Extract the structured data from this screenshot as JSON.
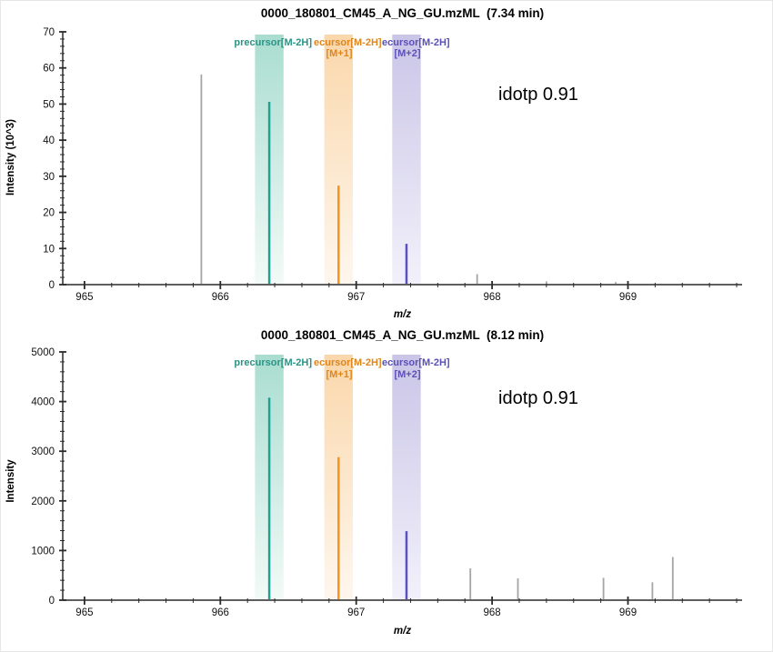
{
  "colors": {
    "axis": "#2a2a2a",
    "gray_peak": "#a5a5a5",
    "teal_peak": "#1fa294",
    "orange_peak": "#f7941e",
    "purple_peak": "#5a50c2",
    "teal_text": "#2a9486",
    "orange_text": "#de861c",
    "purple_text": "#5a50b8",
    "teal_band_top": "#a9ddd0",
    "teal_band_bottom": "#f2faf7",
    "orange_band_top": "#fad7ab",
    "orange_band_bottom": "#fef7ee",
    "purple_band_top": "#cac5e7",
    "purple_band_bottom": "#f2f1fa"
  },
  "chart_data": [
    {
      "type": "line",
      "subtype": "mass-spectrum-sticks",
      "title": "0000_180801_CM45_A_NG_GU.mzML  (7.34 min)",
      "xlabel": "m/z",
      "ylabel": "Intensity (10^3)",
      "annotation": "idotp 0.91",
      "xlim": [
        964.84,
        969.84
      ],
      "ylim": [
        0,
        70
      ],
      "x_major_ticks": [
        965,
        966,
        967,
        968,
        969
      ],
      "x_minor_step": 0.2,
      "y_major_ticks": [
        0,
        10,
        20,
        30,
        40,
        50,
        60,
        70
      ],
      "y_minor_step": 2,
      "grid": false,
      "band_half_width_mz": 0.105,
      "bands": [
        {
          "color": "teal",
          "center_mz": 966.36
        },
        {
          "color": "orange",
          "center_mz": 966.87
        },
        {
          "color": "purple",
          "center_mz": 967.37
        }
      ],
      "legend": {
        "row1": [
          {
            "text": "precursor[M-2H]",
            "color": "teal"
          },
          {
            "text": "ecursor[M-2H]",
            "color": "orange"
          },
          {
            "text": "ecursor[M-2H]",
            "color": "purple"
          }
        ],
        "row2": [
          {
            "text": "[M+1]",
            "color": "orange"
          },
          {
            "text": "[M+2]",
            "color": "purple"
          }
        ]
      },
      "peaks": [
        {
          "mz": 965.86,
          "intensity": 58.2,
          "color": "gray"
        },
        {
          "mz": 966.36,
          "intensity": 50.6,
          "color": "teal"
        },
        {
          "mz": 966.87,
          "intensity": 27.4,
          "color": "orange"
        },
        {
          "mz": 967.37,
          "intensity": 11.3,
          "color": "purple"
        },
        {
          "mz": 967.89,
          "intensity": 2.9,
          "color": "gray"
        },
        {
          "mz": 968.4,
          "intensity": 0.9,
          "color": "gray"
        },
        {
          "mz": 968.91,
          "intensity": 0.7,
          "color": "gray"
        }
      ]
    },
    {
      "type": "line",
      "subtype": "mass-spectrum-sticks",
      "title": "0000_180801_CM45_A_NG_GU.mzML  (8.12 min)",
      "xlabel": "m/z",
      "ylabel": "Intensity",
      "annotation": "idotp 0.91",
      "xlim": [
        964.84,
        969.84
      ],
      "ylim": [
        0,
        5000
      ],
      "x_major_ticks": [
        965,
        966,
        967,
        968,
        969
      ],
      "x_minor_step": 0.2,
      "y_major_ticks": [
        0,
        1000,
        2000,
        3000,
        4000,
        5000
      ],
      "y_minor_step": 200,
      "grid": false,
      "band_half_width_mz": 0.105,
      "bands": [
        {
          "color": "teal",
          "center_mz": 966.36
        },
        {
          "color": "orange",
          "center_mz": 966.87
        },
        {
          "color": "purple",
          "center_mz": 967.37
        }
      ],
      "legend": {
        "row1": [
          {
            "text": "precursor[M-2H]",
            "color": "teal"
          },
          {
            "text": "ecursor[M-2H]",
            "color": "orange"
          },
          {
            "text": "ecursor[M-2H]",
            "color": "purple"
          }
        ],
        "row2": [
          {
            "text": "[M+1]",
            "color": "orange"
          },
          {
            "text": "[M+2]",
            "color": "purple"
          }
        ]
      },
      "peaks": [
        {
          "mz": 966.36,
          "intensity": 4080,
          "color": "teal"
        },
        {
          "mz": 966.87,
          "intensity": 2880,
          "color": "orange"
        },
        {
          "mz": 967.37,
          "intensity": 1390,
          "color": "purple"
        },
        {
          "mz": 967.84,
          "intensity": 640,
          "color": "gray"
        },
        {
          "mz": 968.19,
          "intensity": 440,
          "color": "gray"
        },
        {
          "mz": 968.82,
          "intensity": 450,
          "color": "gray"
        },
        {
          "mz": 969.18,
          "intensity": 360,
          "color": "gray"
        },
        {
          "mz": 969.33,
          "intensity": 870,
          "color": "gray"
        }
      ]
    }
  ]
}
